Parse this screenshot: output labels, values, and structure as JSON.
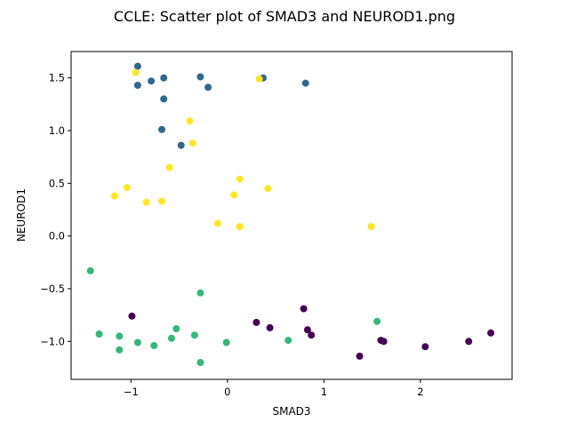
{
  "chart_data": {
    "type": "scatter",
    "title": "CCLE: Scatter plot of SMAD3 and NEUROD1.png",
    "xlabel": "SMAD3",
    "ylabel": "NEUROD1",
    "xlim": [
      -1.62,
      2.95
    ],
    "ylim": [
      -1.36,
      1.75
    ],
    "xticks": [
      -1,
      0,
      1,
      2
    ],
    "xtick_labels": [
      "−1",
      "0",
      "1",
      "2"
    ],
    "yticks": [
      -1.0,
      -0.5,
      0.0,
      0.5,
      1.0,
      1.5
    ],
    "ytick_labels": [
      "−1.0",
      "−0.5",
      "0.0",
      "0.5",
      "1.0",
      "1.5"
    ],
    "grid": false,
    "legend": "none",
    "series": [
      {
        "color": "#440154",
        "points": [
          [
            -0.99,
            -0.76
          ],
          [
            0.3,
            -0.82
          ],
          [
            0.44,
            -0.87
          ],
          [
            0.79,
            -0.69
          ],
          [
            0.83,
            -0.89
          ],
          [
            0.87,
            -0.94
          ],
          [
            1.37,
            -1.14
          ],
          [
            1.59,
            -0.99
          ],
          [
            1.62,
            -1.0
          ],
          [
            2.05,
            -1.05
          ],
          [
            2.5,
            -1.0
          ],
          [
            2.73,
            -0.92
          ]
        ]
      },
      {
        "color": "#31688e",
        "points": [
          [
            -0.93,
            1.61
          ],
          [
            -0.93,
            1.43
          ],
          [
            -0.79,
            1.47
          ],
          [
            -0.66,
            1.5
          ],
          [
            -0.66,
            1.3
          ],
          [
            -0.68,
            1.01
          ],
          [
            -0.48,
            0.86
          ],
          [
            -0.28,
            1.51
          ],
          [
            -0.2,
            1.41
          ],
          [
            0.37,
            1.5
          ],
          [
            0.81,
            1.45
          ]
        ]
      },
      {
        "color": "#35b779",
        "points": [
          [
            -1.42,
            -0.33
          ],
          [
            -1.33,
            -0.93
          ],
          [
            -1.12,
            -0.95
          ],
          [
            -1.12,
            -1.08
          ],
          [
            -0.93,
            -1.01
          ],
          [
            -0.76,
            -1.04
          ],
          [
            -0.58,
            -0.97
          ],
          [
            -0.53,
            -0.88
          ],
          [
            -0.34,
            -0.94
          ],
          [
            -0.28,
            -0.54
          ],
          [
            -0.28,
            -1.2
          ],
          [
            -0.01,
            -1.01
          ],
          [
            0.63,
            -0.99
          ],
          [
            1.55,
            -0.81
          ]
        ]
      },
      {
        "color": "#fde725",
        "points": [
          [
            -0.95,
            1.55
          ],
          [
            -0.39,
            1.09
          ],
          [
            -0.36,
            0.88
          ],
          [
            -0.6,
            0.65
          ],
          [
            -1.04,
            0.46
          ],
          [
            -1.17,
            0.38
          ],
          [
            -0.84,
            0.32
          ],
          [
            -0.68,
            0.33
          ],
          [
            -0.1,
            0.12
          ],
          [
            0.07,
            0.39
          ],
          [
            0.13,
            0.54
          ],
          [
            0.13,
            0.09
          ],
          [
            0.33,
            1.49
          ],
          [
            0.42,
            0.45
          ],
          [
            1.49,
            0.09
          ]
        ]
      }
    ]
  }
}
